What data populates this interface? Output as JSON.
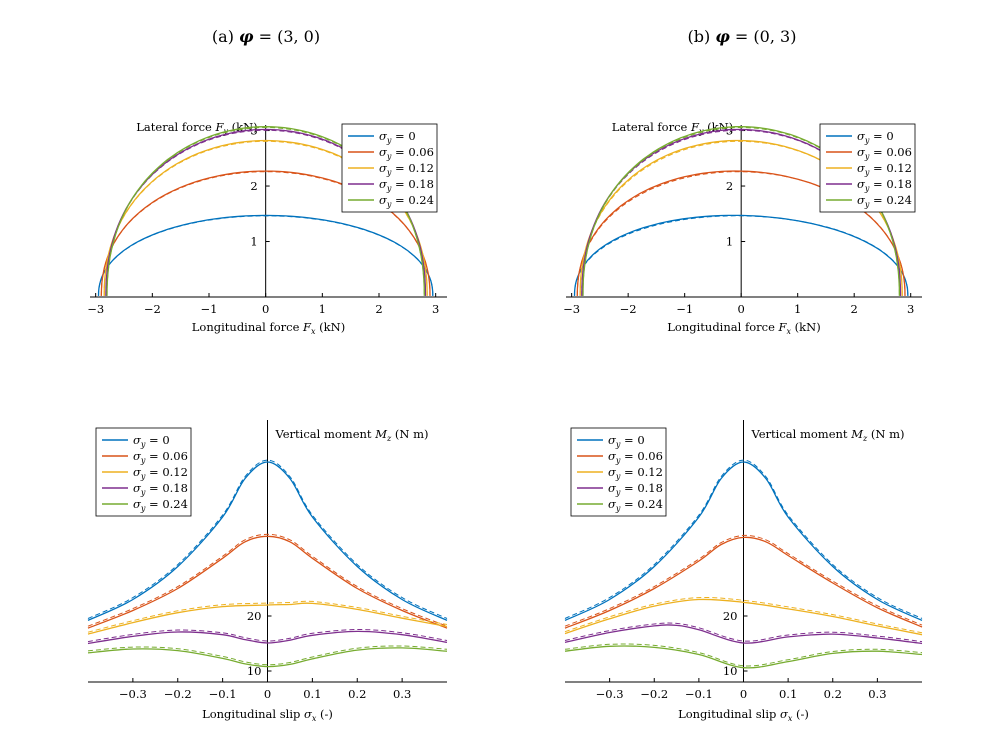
{
  "colors": {
    "s0": "#0072BD",
    "s1": "#D95319",
    "s2": "#EDB120",
    "s3": "#7E2F8E",
    "s4": "#77AC30"
  },
  "chart_data": [
    {
      "id": "a-top",
      "type": "line",
      "title_main": "(a) φ = (3, 0)",
      "xlabel": "Longitudinal force F_x (kN)",
      "ylabel": "Lateral force F_y (kN)",
      "xlim": [
        -3.1,
        3.2
      ],
      "ylim": [
        0,
        3.1
      ],
      "xticks": [
        -3,
        -2,
        -1,
        0,
        1,
        2,
        3
      ],
      "yticks": [
        1,
        2,
        3
      ],
      "legend_position": "top-right",
      "series": [
        {
          "name": "σy = 0",
          "fy_peak": 1.45,
          "fx_left": -2.95,
          "fx_right": 2.95,
          "skew": 0.0
        },
        {
          "name": "σy = 0.06",
          "fy_peak": 2.25,
          "fx_left": -2.9,
          "fx_right": 2.9,
          "skew": 0.0
        },
        {
          "name": "σy = 0.12",
          "fy_peak": 2.8,
          "fx_left": -2.85,
          "fx_right": 2.85,
          "skew": 0.0
        },
        {
          "name": "σy = 0.18",
          "fy_peak": 3.0,
          "fx_left": -2.82,
          "fx_right": 2.82,
          "skew": 0.0
        },
        {
          "name": "σy = 0.24",
          "fy_peak": 3.05,
          "fx_left": -2.8,
          "fx_right": 2.8,
          "skew": 0.0
        }
      ]
    },
    {
      "id": "b-top",
      "type": "line",
      "title_main": "(b) φ = (0, 3)",
      "xlabel": "Longitudinal force F_x (kN)",
      "ylabel": "Lateral force F_y (kN)",
      "xlim": [
        -3.1,
        3.2
      ],
      "ylim": [
        0,
        3.1
      ],
      "xticks": [
        -3,
        -2,
        -1,
        0,
        1,
        2,
        3
      ],
      "yticks": [
        1,
        2,
        3
      ],
      "legend_position": "top-right",
      "series": [
        {
          "name": "σy = 0",
          "fy_peak": 1.45,
          "fx_left": -2.95,
          "fx_right": 2.95,
          "skew": 0.35
        },
        {
          "name": "σy = 0.06",
          "fy_peak": 2.25,
          "fx_left": -2.9,
          "fx_right": 2.9,
          "skew": 0.25
        },
        {
          "name": "σy = 0.12",
          "fy_peak": 2.8,
          "fx_left": -2.85,
          "fx_right": 2.85,
          "skew": 0.15
        },
        {
          "name": "σy = 0.18",
          "fy_peak": 3.0,
          "fx_left": -2.82,
          "fx_right": 2.82,
          "skew": 0.1
        },
        {
          "name": "σy = 0.24",
          "fy_peak": 3.05,
          "fx_left": -2.8,
          "fx_right": 2.8,
          "skew": 0.05
        }
      ]
    },
    {
      "id": "a-bottom",
      "type": "line",
      "xlabel": "Longitudinal slip σ_x (-)",
      "ylabel": "Vertical moment M_z (N m)",
      "xlim": [
        -0.4,
        0.4
      ],
      "ylim": [
        8,
        52
      ],
      "xticks": [
        -0.3,
        -0.2,
        -0.1,
        0,
        0.1,
        0.2,
        0.3
      ],
      "yticks": [
        10,
        20
      ],
      "legend_position": "top-left",
      "series": [
        {
          "name": "σy = 0",
          "points": [
            [
              -0.4,
              19.2
            ],
            [
              -0.3,
              23
            ],
            [
              -0.2,
              29
            ],
            [
              -0.1,
              38
            ],
            [
              -0.05,
              45
            ],
            [
              0,
              48
            ],
            [
              0.05,
              45
            ],
            [
              0.1,
              38
            ],
            [
              0.2,
              29
            ],
            [
              0.3,
              23
            ],
            [
              0.4,
              19.2
            ]
          ]
        },
        {
          "name": "σy = 0.06",
          "points": [
            [
              -0.4,
              17.8
            ],
            [
              -0.3,
              21
            ],
            [
              -0.2,
              25
            ],
            [
              -0.1,
              30.5
            ],
            [
              -0.05,
              33.5
            ],
            [
              0,
              34.5
            ],
            [
              0.05,
              33.5
            ],
            [
              0.1,
              30.5
            ],
            [
              0.2,
              25
            ],
            [
              0.3,
              21
            ],
            [
              0.4,
              17.8
            ]
          ]
        },
        {
          "name": "σy = 0.12",
          "points": [
            [
              -0.4,
              16.7
            ],
            [
              -0.3,
              18.8
            ],
            [
              -0.2,
              20.6
            ],
            [
              -0.1,
              21.7
            ],
            [
              0,
              22
            ],
            [
              0.05,
              22.1
            ],
            [
              0.1,
              22.3
            ],
            [
              0.2,
              21.2
            ],
            [
              0.3,
              19.6
            ],
            [
              0.4,
              18.1
            ]
          ]
        },
        {
          "name": "σy = 0.18",
          "points": [
            [
              -0.4,
              15
            ],
            [
              -0.3,
              16.3
            ],
            [
              -0.2,
              17.1
            ],
            [
              -0.1,
              16.6
            ],
            [
              -0.05,
              15.7
            ],
            [
              0,
              15.1
            ],
            [
              0.05,
              15.6
            ],
            [
              0.1,
              16.5
            ],
            [
              0.2,
              17.2
            ],
            [
              0.3,
              16.6
            ],
            [
              0.4,
              15.2
            ]
          ]
        },
        {
          "name": "σy = 0.24",
          "points": [
            [
              -0.4,
              13.3
            ],
            [
              -0.3,
              14
            ],
            [
              -0.2,
              13.7
            ],
            [
              -0.1,
              12.3
            ],
            [
              -0.05,
              11.3
            ],
            [
              0,
              10.8
            ],
            [
              0.05,
              11.2
            ],
            [
              0.1,
              12.2
            ],
            [
              0.2,
              13.8
            ],
            [
              0.3,
              14.2
            ],
            [
              0.4,
              13.6
            ]
          ]
        }
      ]
    },
    {
      "id": "b-bottom",
      "type": "line",
      "xlabel": "Longitudinal slip σ_x (-)",
      "ylabel": "Vertical moment M_z (N m)",
      "xlim": [
        -0.4,
        0.4
      ],
      "ylim": [
        8,
        52
      ],
      "xticks": [
        -0.3,
        -0.2,
        -0.1,
        0,
        0.1,
        0.2,
        0.3
      ],
      "yticks": [
        10,
        20
      ],
      "legend_position": "top-left",
      "series": [
        {
          "name": "σy = 0",
          "points": [
            [
              -0.4,
              19.2
            ],
            [
              -0.3,
              23
            ],
            [
              -0.2,
              29
            ],
            [
              -0.1,
              38
            ],
            [
              -0.05,
              45
            ],
            [
              0,
              48
            ],
            [
              0.05,
              45
            ],
            [
              0.1,
              38
            ],
            [
              0.2,
              29
            ],
            [
              0.3,
              23
            ],
            [
              0.4,
              19.2
            ]
          ]
        },
        {
          "name": "σy = 0.06",
          "points": [
            [
              -0.4,
              17.8
            ],
            [
              -0.3,
              21
            ],
            [
              -0.2,
              25
            ],
            [
              -0.1,
              30
            ],
            [
              -0.05,
              33
            ],
            [
              0,
              34.3
            ],
            [
              0.05,
              33.5
            ],
            [
              0.1,
              31
            ],
            [
              0.2,
              26
            ],
            [
              0.3,
              21.5
            ],
            [
              0.4,
              18
            ]
          ]
        },
        {
          "name": "σy = 0.12",
          "points": [
            [
              -0.4,
              16.8
            ],
            [
              -0.3,
              19.5
            ],
            [
              -0.2,
              21.8
            ],
            [
              -0.1,
              23
            ],
            [
              0,
              22.5
            ],
            [
              0.1,
              21.3
            ],
            [
              0.2,
              19.9
            ],
            [
              0.3,
              18.2
            ],
            [
              0.4,
              16.6
            ]
          ]
        },
        {
          "name": "σy = 0.18",
          "points": [
            [
              -0.4,
              15.2
            ],
            [
              -0.3,
              17
            ],
            [
              -0.2,
              18.2
            ],
            [
              -0.15,
              18.3
            ],
            [
              -0.1,
              17.5
            ],
            [
              0,
              15.1
            ],
            [
              0.1,
              16.2
            ],
            [
              0.2,
              16.7
            ],
            [
              0.3,
              16
            ],
            [
              0.4,
              15
            ]
          ]
        },
        {
          "name": "σy = 0.24",
          "points": [
            [
              -0.4,
              13.6
            ],
            [
              -0.3,
              14.5
            ],
            [
              -0.2,
              14.3
            ],
            [
              -0.1,
              13
            ],
            [
              0,
              10.6
            ],
            [
              0.1,
              11.7
            ],
            [
              0.2,
              13.2
            ],
            [
              0.3,
              13.6
            ],
            [
              0.4,
              13
            ]
          ]
        }
      ]
    }
  ]
}
